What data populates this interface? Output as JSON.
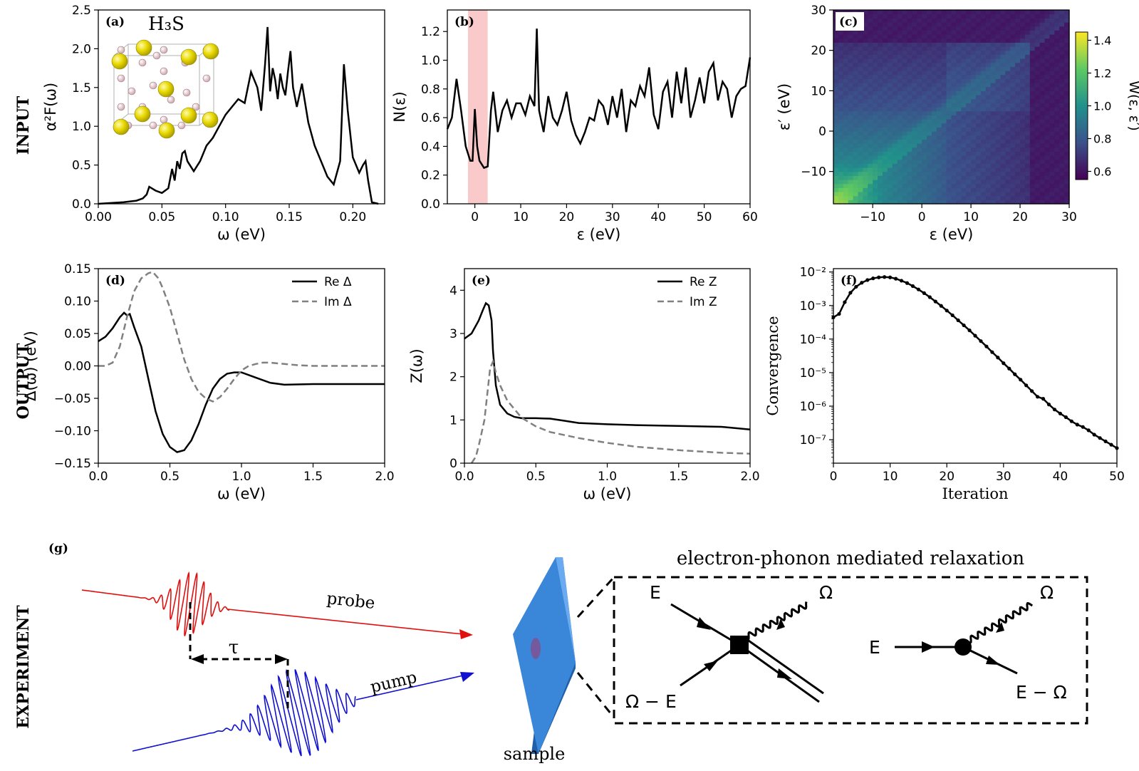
{
  "row_labels": [
    "INPUT",
    "OUTPUT",
    "EXPERIMENT"
  ],
  "chart_data": [
    {
      "id": "a",
      "type": "line",
      "panel_label": "(a)",
      "inset_title": "H₃S",
      "xlabel": "ω (eV)",
      "ylabel": "α²F(ω)",
      "xlim": [
        0,
        0.225
      ],
      "ylim": [
        0,
        2.5
      ],
      "xticks": [
        0,
        0.05,
        0.1,
        0.15,
        0.2
      ],
      "xtick_labels": [
        "0.00",
        "0.05",
        "0.10",
        "0.15",
        "0.20"
      ],
      "yticks": [
        0,
        0.5,
        1.0,
        1.5,
        2.0,
        2.5
      ],
      "ytick_labels": [
        "0.0",
        "0.5",
        "1.0",
        "1.5",
        "2.0",
        "2.5"
      ],
      "series": [
        {
          "style": "solid",
          "color": "#000000",
          "x": [
            0,
            0.01,
            0.02,
            0.03,
            0.035,
            0.038,
            0.04,
            0.045,
            0.05,
            0.055,
            0.058,
            0.06,
            0.062,
            0.064,
            0.066,
            0.068,
            0.07,
            0.075,
            0.08,
            0.085,
            0.09,
            0.095,
            0.1,
            0.105,
            0.11,
            0.115,
            0.12,
            0.125,
            0.128,
            0.131,
            0.133,
            0.135,
            0.137,
            0.139,
            0.141,
            0.143,
            0.145,
            0.147,
            0.149,
            0.151,
            0.153,
            0.156,
            0.16,
            0.165,
            0.17,
            0.175,
            0.18,
            0.185,
            0.19,
            0.193,
            0.196,
            0.2,
            0.205,
            0.208,
            0.21,
            0.212,
            0.215,
            0.22
          ],
          "y": [
            0.0,
            0.01,
            0.02,
            0.04,
            0.07,
            0.12,
            0.22,
            0.17,
            0.14,
            0.2,
            0.45,
            0.3,
            0.55,
            0.45,
            0.65,
            0.68,
            0.55,
            0.42,
            0.55,
            0.75,
            0.85,
            1.0,
            1.15,
            1.25,
            1.35,
            1.3,
            1.7,
            1.5,
            1.2,
            1.8,
            2.28,
            1.45,
            1.75,
            1.6,
            1.35,
            1.68,
            1.5,
            1.4,
            1.7,
            1.97,
            1.5,
            1.25,
            1.55,
            1.05,
            0.75,
            0.55,
            0.35,
            0.25,
            0.55,
            1.8,
            1.2,
            0.6,
            0.4,
            0.5,
            0.55,
            0.3,
            0.02,
            0.0
          ]
        }
      ]
    },
    {
      "id": "b",
      "type": "line",
      "panel_label": "(b)",
      "xlabel": "ε (eV)",
      "ylabel": "N(ε)",
      "xlim": [
        -6,
        60
      ],
      "ylim": [
        0,
        1.35
      ],
      "highlight_span": [
        -1.5,
        2.8
      ],
      "xticks": [
        0,
        10,
        20,
        30,
        40,
        50,
        60
      ],
      "xtick_labels": [
        "0",
        "10",
        "20",
        "30",
        "40",
        "50",
        "60"
      ],
      "yticks": [
        0,
        0.2,
        0.4,
        0.6,
        0.8,
        1.0,
        1.2
      ],
      "ytick_labels": [
        "0.0",
        "0.2",
        "0.4",
        "0.6",
        "0.8",
        "1.0",
        "1.2"
      ],
      "series": [
        {
          "style": "solid",
          "color": "#000000",
          "x": [
            -6,
            -5,
            -4,
            -3,
            -2,
            -1,
            -0.5,
            0,
            0.5,
            1,
            2,
            2.8,
            3.5,
            4,
            5,
            6,
            7,
            8,
            9,
            10,
            11,
            12,
            13,
            13.5,
            14,
            15,
            16,
            17,
            18,
            19,
            20,
            21,
            22,
            23,
            24,
            25,
            26,
            27,
            28,
            29,
            30,
            31,
            32,
            33,
            34,
            35,
            36,
            37,
            38,
            39,
            40,
            41,
            42,
            43,
            44,
            45,
            46,
            47,
            48,
            49,
            50,
            51,
            52,
            53,
            54,
            55,
            56,
            57,
            58,
            59,
            60
          ],
          "y": [
            0.52,
            0.6,
            0.87,
            0.65,
            0.4,
            0.3,
            0.3,
            0.66,
            0.4,
            0.3,
            0.25,
            0.26,
            0.65,
            0.78,
            0.5,
            0.65,
            0.72,
            0.6,
            0.7,
            0.7,
            0.62,
            0.75,
            0.68,
            1.22,
            0.65,
            0.5,
            0.75,
            0.6,
            0.55,
            0.65,
            0.78,
            0.58,
            0.48,
            0.42,
            0.5,
            0.6,
            0.58,
            0.72,
            0.68,
            0.55,
            0.75,
            0.6,
            0.8,
            0.5,
            0.72,
            0.68,
            0.82,
            0.75,
            0.95,
            0.62,
            0.52,
            0.78,
            0.85,
            0.6,
            0.92,
            0.7,
            0.95,
            0.6,
            0.72,
            0.88,
            0.7,
            0.92,
            0.98,
            0.72,
            0.85,
            0.8,
            0.6,
            0.75,
            0.8,
            0.82,
            1.02
          ]
        }
      ]
    },
    {
      "id": "c",
      "type": "heatmap",
      "panel_label": "(c)",
      "xlabel": "ε (eV)",
      "ylabel": "ε′ (eV)",
      "xlim": [
        -18,
        30
      ],
      "ylim": [
        -18,
        30
      ],
      "xticks": [
        -10,
        0,
        10,
        20,
        30
      ],
      "xtick_labels": [
        "−10",
        "0",
        "10",
        "20",
        "30"
      ],
      "yticks": [
        -10,
        0,
        10,
        20,
        30
      ],
      "ytick_labels": [
        "−10",
        "0",
        "10",
        "20",
        "30"
      ],
      "colorbar_label": "W(ε, ε′)",
      "colorbar_range": [
        0.55,
        1.45
      ],
      "colorbar_ticks": [
        0.6,
        0.8,
        1.0,
        1.2,
        1.4
      ],
      "colorbar_tick_labels": [
        "0.6",
        "0.8",
        "1.0",
        "1.2",
        "1.4"
      ],
      "colormap": "viridis"
    },
    {
      "id": "d",
      "type": "line",
      "panel_label": "(d)",
      "xlabel": "ω (eV)",
      "ylabel": "Δ(ω) (eV)",
      "xlim": [
        0,
        2.0
      ],
      "ylim": [
        -0.15,
        0.15
      ],
      "xticks": [
        0,
        0.5,
        1.0,
        1.5,
        2.0
      ],
      "xtick_labels": [
        "0.0",
        "0.5",
        "1.0",
        "1.5",
        "2.0"
      ],
      "yticks": [
        -0.15,
        -0.1,
        -0.05,
        0,
        0.05,
        0.1,
        0.15
      ],
      "ytick_labels": [
        "−0.15",
        "−0.10",
        "−0.05",
        "0.00",
        "0.05",
        "0.10",
        "0.15"
      ],
      "legend_position": "top-right",
      "series": [
        {
          "name": "Re Δ",
          "style": "solid",
          "color": "#000000",
          "x": [
            0,
            0.05,
            0.1,
            0.15,
            0.18,
            0.2,
            0.22,
            0.25,
            0.3,
            0.35,
            0.4,
            0.45,
            0.5,
            0.55,
            0.6,
            0.65,
            0.7,
            0.75,
            0.8,
            0.85,
            0.9,
            0.95,
            1.0,
            1.1,
            1.2,
            1.3,
            1.5,
            1.7,
            2.0
          ],
          "y": [
            0.038,
            0.045,
            0.058,
            0.075,
            0.082,
            0.078,
            0.08,
            0.06,
            0.03,
            -0.02,
            -0.07,
            -0.105,
            -0.125,
            -0.133,
            -0.13,
            -0.115,
            -0.09,
            -0.06,
            -0.035,
            -0.02,
            -0.012,
            -0.01,
            -0.01,
            -0.018,
            -0.026,
            -0.029,
            -0.028,
            -0.028,
            -0.028
          ]
        },
        {
          "name": "Im Δ",
          "style": "dashed",
          "color": "#808080",
          "x": [
            0,
            0.05,
            0.1,
            0.15,
            0.2,
            0.25,
            0.3,
            0.35,
            0.38,
            0.42,
            0.45,
            0.5,
            0.55,
            0.6,
            0.65,
            0.7,
            0.75,
            0.8,
            0.85,
            0.9,
            0.95,
            1.0,
            1.05,
            1.1,
            1.15,
            1.2,
            1.3,
            1.4,
            1.5,
            1.7,
            2.0
          ],
          "y": [
            0,
            0,
            0.005,
            0.03,
            0.075,
            0.115,
            0.135,
            0.143,
            0.145,
            0.135,
            0.12,
            0.09,
            0.05,
            0.01,
            -0.02,
            -0.04,
            -0.05,
            -0.055,
            -0.048,
            -0.035,
            -0.02,
            -0.007,
            0.0,
            0.003,
            0.005,
            0.005,
            0.003,
            0.001,
            0.0,
            0.0,
            0.0
          ]
        }
      ]
    },
    {
      "id": "e",
      "type": "line",
      "panel_label": "(e)",
      "xlabel": "ω (eV)",
      "ylabel": "Z(ω)",
      "xlim": [
        0,
        2.0
      ],
      "ylim": [
        0,
        4.5
      ],
      "xticks": [
        0,
        0.5,
        1.0,
        1.5,
        2.0
      ],
      "xtick_labels": [
        "0.0",
        "0.5",
        "1.0",
        "1.5",
        "2.0"
      ],
      "yticks": [
        0,
        1,
        2,
        3,
        4
      ],
      "ytick_labels": [
        "0",
        "1",
        "2",
        "3",
        "4"
      ],
      "legend_position": "top-right",
      "series": [
        {
          "name": "Re Z",
          "style": "solid",
          "color": "#000000",
          "x": [
            0,
            0.05,
            0.1,
            0.13,
            0.15,
            0.17,
            0.19,
            0.2,
            0.22,
            0.25,
            0.3,
            0.35,
            0.4,
            0.5,
            0.6,
            0.7,
            0.8,
            1.0,
            1.2,
            1.5,
            1.8,
            2.0
          ],
          "y": [
            2.88,
            3.0,
            3.3,
            3.55,
            3.7,
            3.65,
            3.3,
            2.6,
            1.8,
            1.35,
            1.15,
            1.07,
            1.04,
            1.04,
            1.03,
            0.98,
            0.93,
            0.9,
            0.88,
            0.86,
            0.84,
            0.78
          ]
        },
        {
          "name": "Im Z",
          "style": "dashed",
          "color": "#808080",
          "x": [
            0.05,
            0.08,
            0.1,
            0.12,
            0.14,
            0.16,
            0.18,
            0.2,
            0.22,
            0.25,
            0.3,
            0.4,
            0.5,
            0.6,
            0.8,
            1.0,
            1.2,
            1.5,
            1.8,
            2.0
          ],
          "y": [
            0,
            0.15,
            0.4,
            0.7,
            1.0,
            1.6,
            2.2,
            2.35,
            2.1,
            1.8,
            1.45,
            1.05,
            0.85,
            0.72,
            0.58,
            0.47,
            0.38,
            0.3,
            0.24,
            0.22
          ]
        }
      ]
    },
    {
      "id": "f",
      "type": "line",
      "panel_label": "(f)",
      "xlabel": "Iteration",
      "ylabel": "Convergence",
      "xlim": [
        0,
        50
      ],
      "ylim_log10": [
        -7.7,
        -1.9
      ],
      "yscale": "log",
      "xticks": [
        0,
        10,
        20,
        30,
        40,
        50
      ],
      "xtick_labels": [
        "0",
        "10",
        "20",
        "30",
        "40",
        "50"
      ],
      "yticks_log10": [
        -7,
        -6,
        -5,
        -4,
        -3,
        -2
      ],
      "ytick_labels": [
        "10⁻⁷",
        "10⁻⁶",
        "10⁻⁵",
        "10⁻⁴",
        "10⁻³",
        "10⁻²"
      ],
      "series": [
        {
          "style": "solid-markers",
          "color": "#000000",
          "x": [
            0,
            1,
            2,
            3,
            4,
            5,
            6,
            7,
            8,
            9,
            10,
            11,
            12,
            13,
            14,
            15,
            16,
            17,
            18,
            19,
            20,
            21,
            22,
            23,
            24,
            25,
            26,
            27,
            28,
            29,
            30,
            31,
            32,
            33,
            34,
            35,
            36,
            37,
            38,
            39,
            40,
            41,
            42,
            43,
            44,
            45,
            46,
            47,
            48,
            49,
            50
          ],
          "log10_y": [
            -3.35,
            -3.25,
            -2.9,
            -2.62,
            -2.44,
            -2.32,
            -2.24,
            -2.19,
            -2.16,
            -2.15,
            -2.16,
            -2.2,
            -2.26,
            -2.33,
            -2.42,
            -2.52,
            -2.63,
            -2.75,
            -2.88,
            -3.01,
            -3.15,
            -3.29,
            -3.44,
            -3.59,
            -3.74,
            -3.9,
            -4.06,
            -4.22,
            -4.39,
            -4.55,
            -4.72,
            -4.88,
            -5.05,
            -5.21,
            -5.38,
            -5.55,
            -5.72,
            -5.78,
            -5.95,
            -6.1,
            -6.22,
            -6.33,
            -6.45,
            -6.55,
            -6.62,
            -6.72,
            -6.85,
            -6.95,
            -7.05,
            -7.15,
            -7.25
          ]
        }
      ]
    }
  ],
  "experiment": {
    "panel_label": "(g)",
    "probe_label": "probe",
    "pump_label": "pump",
    "delay_label": "τ",
    "sample_label": "sample",
    "relaxation_title": "electron-phonon mediated relaxation",
    "diagram1": {
      "e_label": "E",
      "omega_label": "Ω",
      "omega_minus_e_label": "Ω − E"
    },
    "diagram2": {
      "e_label": "E",
      "omega_label": "Ω",
      "e_minus_omega_label": "E − Ω"
    },
    "colors": {
      "probe": "#e01010",
      "pump": "#1010d0",
      "sample": "#3a86d8",
      "highlight": "#f5a5a5"
    }
  }
}
